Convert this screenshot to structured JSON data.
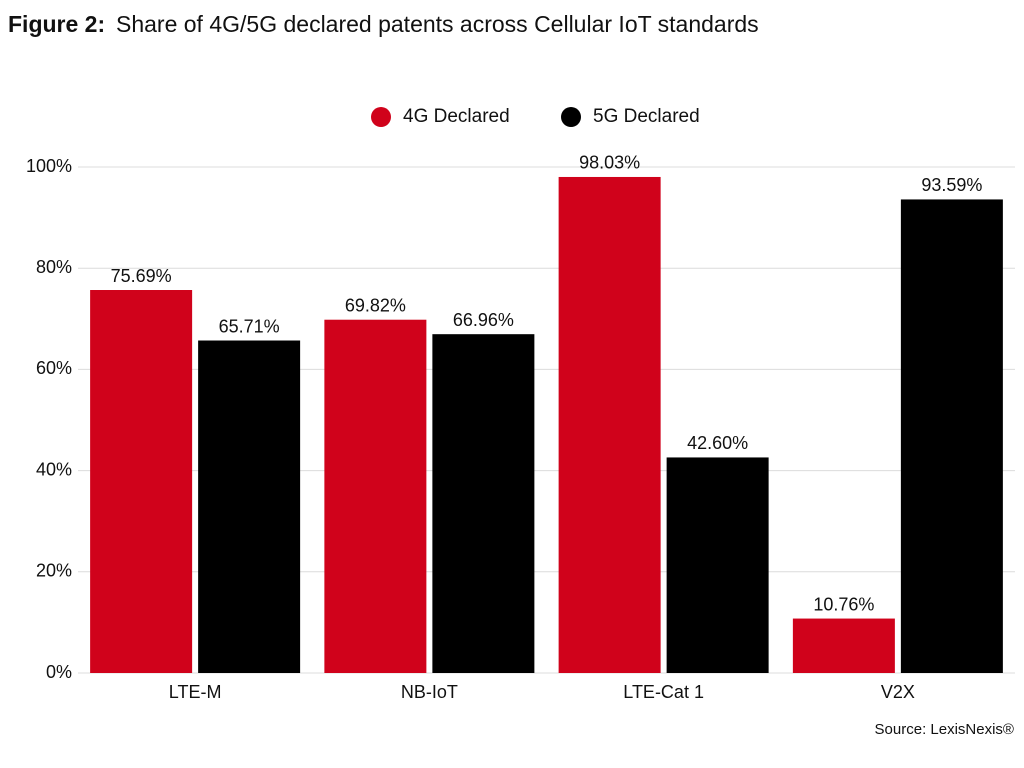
{
  "chart_data": {
    "type": "bar",
    "title_label": "Figure 2:",
    "title": "Share of 4G/5G declared patents across Cellular IoT standards",
    "source": "Source: LexisNexis®",
    "categories": [
      "LTE-M",
      "NB-IoT",
      "LTE-Cat 1",
      "V2X"
    ],
    "series": [
      {
        "name": "4G Declared",
        "color": "#d0021b",
        "values": [
          75.69,
          69.82,
          98.03,
          10.76
        ],
        "value_labels": [
          "75.69%",
          "69.82%",
          "98.03%",
          "10.76%"
        ]
      },
      {
        "name": "5G Declared",
        "color": "#000000",
        "values": [
          65.71,
          66.96,
          42.6,
          93.59
        ],
        "value_labels": [
          "65.71%",
          "66.96%",
          "42.60%",
          "93.59%"
        ]
      }
    ],
    "ylim": [
      0,
      100
    ],
    "yticks": [
      {
        "value": 0,
        "label": "0%"
      },
      {
        "value": 20,
        "label": "20%"
      },
      {
        "value": 40,
        "label": "40%"
      },
      {
        "value": 60,
        "label": "60%"
      },
      {
        "value": 80,
        "label": "80%"
      },
      {
        "value": 100,
        "label": "100%"
      }
    ],
    "grid": true,
    "legend": "top"
  }
}
